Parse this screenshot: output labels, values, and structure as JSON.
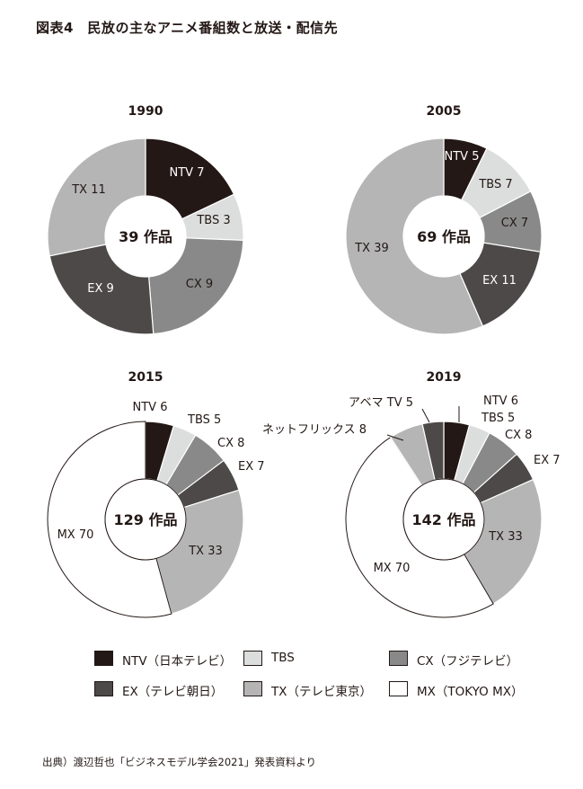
{
  "title": "図表4　民放の主なアニメ番組数と放送・配信先",
  "colors": {
    "NTV": "#231815",
    "TBS": "#dcdddd",
    "CX": "#898989",
    "EX": "#4c4948",
    "TX": "#b5b5b6",
    "MX": "#ffffff",
    "other": "#b5b5b6",
    "stroke": "#231815"
  },
  "chart_data": [
    {
      "type": "pie",
      "title": "1990",
      "center_label": "39 作品",
      "slices": [
        {
          "key": "NTV",
          "label": "NTV 7",
          "value": 7
        },
        {
          "key": "TBS",
          "label": "TBS 3",
          "value": 3
        },
        {
          "key": "CX",
          "label": "CX 9",
          "value": 9
        },
        {
          "key": "EX",
          "label": "EX 9",
          "value": 9
        },
        {
          "key": "TX",
          "label": "TX 11",
          "value": 11
        }
      ]
    },
    {
      "type": "pie",
      "title": "2005",
      "center_label": "69 作品",
      "slices": [
        {
          "key": "NTV",
          "label": "NTV 5",
          "value": 5
        },
        {
          "key": "TBS",
          "label": "TBS 7",
          "value": 7
        },
        {
          "key": "CX",
          "label": "CX 7",
          "value": 7
        },
        {
          "key": "EX",
          "label": "EX 11",
          "value": 11
        },
        {
          "key": "TX",
          "label": "TX 39",
          "value": 39
        }
      ]
    },
    {
      "type": "pie",
      "title": "2015",
      "center_label": "129 作品",
      "slices": [
        {
          "key": "NTV",
          "label": "NTV 6",
          "value": 6
        },
        {
          "key": "TBS",
          "label": "TBS 5",
          "value": 5
        },
        {
          "key": "CX",
          "label": "CX 8",
          "value": 8
        },
        {
          "key": "EX",
          "label": "EX 7",
          "value": 7
        },
        {
          "key": "TX",
          "label": "TX 33",
          "value": 33
        },
        {
          "key": "MX",
          "label": "MX 70",
          "value": 70
        }
      ]
    },
    {
      "type": "pie",
      "title": "2019",
      "center_label": "142 作品",
      "slices": [
        {
          "key": "NTV",
          "label": "NTV 6",
          "value": 6
        },
        {
          "key": "TBS",
          "label": "TBS 5",
          "value": 5
        },
        {
          "key": "CX",
          "label": "CX 8",
          "value": 8
        },
        {
          "key": "EX",
          "label": "EX 7",
          "value": 7
        },
        {
          "key": "TX",
          "label": "TX 33",
          "value": 33
        },
        {
          "key": "MX",
          "label": "MX 70",
          "value": 70
        },
        {
          "key": "other",
          "label": "ネットフリックス 8",
          "value": 8
        },
        {
          "key": "EX",
          "label": "アベマ TV 5",
          "value": 5
        }
      ]
    }
  ],
  "legend": [
    {
      "key": "NTV",
      "label": "NTV（日本テレビ）"
    },
    {
      "key": "TBS",
      "label": "TBS"
    },
    {
      "key": "CX",
      "label": "CX（フジテレビ）"
    },
    {
      "key": "EX",
      "label": "EX（テレビ朝日）"
    },
    {
      "key": "TX",
      "label": "TX（テレビ東京）"
    },
    {
      "key": "MX",
      "label": "MX（TOKYO MX）"
    }
  ],
  "source": "出典）渡辺哲也「ビジネスモデル学会2021」発表資料より"
}
